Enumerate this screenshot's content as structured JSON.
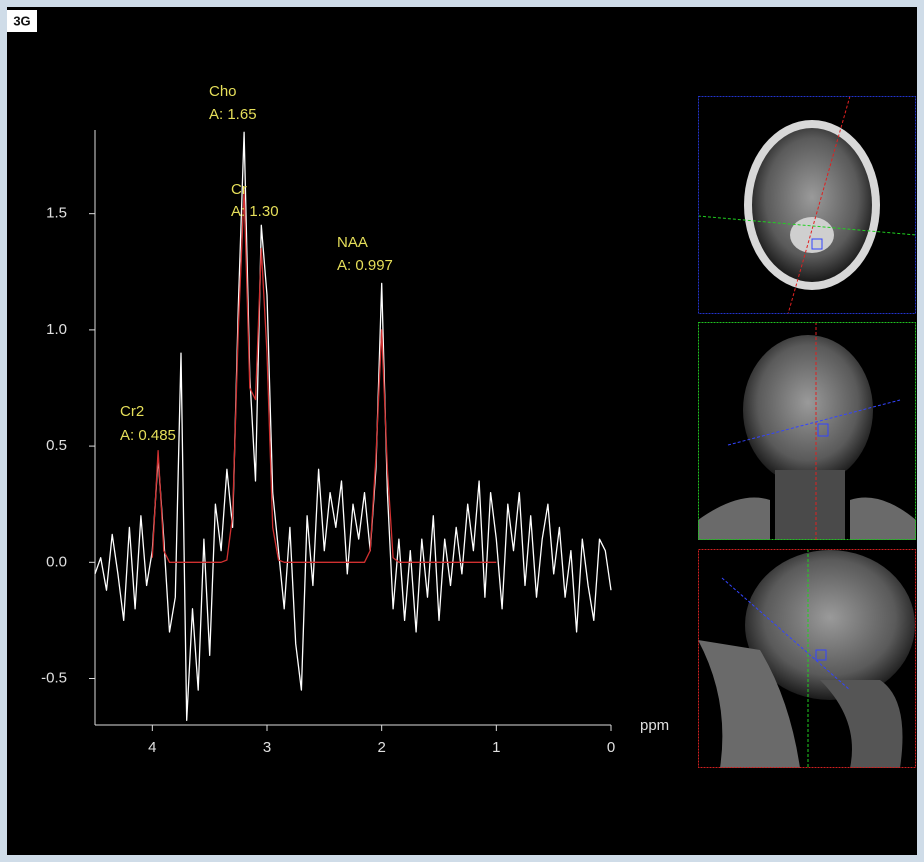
{
  "figure_label": "3G",
  "chart_data": {
    "type": "line",
    "x_label": "ppm",
    "xlim": [
      4.5,
      0
    ],
    "xticks": [
      4,
      3,
      2,
      1,
      0
    ],
    "ylim": [
      -0.7,
      1.86
    ],
    "yticks": [
      -0.5,
      {
        "value": 0,
        "label": "0.0"
      },
      0.5,
      {
        "value": 1,
        "label": "1.0"
      },
      1.5
    ],
    "annotations": [
      {
        "label": "Cho",
        "text": "A: 1.65"
      },
      {
        "label": "Cr",
        "text": "A: 1.30"
      },
      {
        "label": "NAA",
        "text": "A: 0.997"
      },
      {
        "label": "Cr2",
        "text": "A: 0.485"
      }
    ],
    "x": [
      4.5,
      4.45,
      4.4,
      4.35,
      4.3,
      4.25,
      4.2,
      4.15,
      4.1,
      4.05,
      4,
      3.95,
      3.9,
      3.85,
      3.8,
      3.75,
      3.7,
      3.65,
      3.6,
      3.55,
      3.5,
      3.45,
      3.4,
      3.35,
      3.3,
      3.25,
      3.2,
      3.15,
      3.1,
      3.05,
      3,
      2.95,
      2.9,
      2.85,
      2.8,
      2.75,
      2.7,
      2.65,
      2.6,
      2.55,
      2.5,
      2.45,
      2.4,
      2.35,
      2.3,
      2.25,
      2.2,
      2.15,
      2.1,
      2.05,
      2,
      1.95,
      1.9,
      1.85,
      1.8,
      1.75,
      1.7,
      1.65,
      1.6,
      1.55,
      1.5,
      1.45,
      1.4,
      1.35,
      1.3,
      1.25,
      1.2,
      1.15,
      1.1,
      1.05,
      1,
      0.95,
      0.9,
      0.85,
      0.8,
      0.75,
      0.7,
      0.65,
      0.6,
      0.55,
      0.5,
      0.45,
      0.4,
      0.35,
      0.3,
      0.25,
      0.2,
      0.15,
      0.1,
      0.05,
      0
    ],
    "series": [
      {
        "color": "#ffffff",
        "values": [
          -0.05,
          0.02,
          -0.12,
          0.12,
          -0.05,
          -0.25,
          0.15,
          -0.2,
          0.2,
          -0.1,
          0.05,
          0.45,
          0.1,
          -0.3,
          -0.15,
          0.9,
          -0.68,
          -0.2,
          -0.55,
          0.1,
          -0.4,
          0.25,
          0.05,
          0.4,
          0.15,
          1.1,
          1.85,
          0.8,
          0.35,
          1.45,
          1.15,
          0.3,
          0.05,
          -0.2,
          0.15,
          -0.35,
          -0.55,
          0.2,
          -0.1,
          0.4,
          0.05,
          0.3,
          0.15,
          0.35,
          -0.05,
          0.25,
          0.1,
          0.3,
          0.05,
          0.4,
          1.2,
          0.3,
          -0.2,
          0.1,
          -0.25,
          0.05,
          -0.3,
          0.1,
          -0.15,
          0.2,
          -0.25,
          0.1,
          -0.1,
          0.15,
          -0.05,
          0.25,
          0.05,
          0.35,
          -0.15,
          0.3,
          0.1,
          -0.2,
          0.25,
          0.05,
          0.3,
          -0.1,
          0.2,
          -0.15,
          0.1,
          0.25,
          -0.05,
          0.15,
          -0.15,
          0.05,
          -0.3,
          0.1,
          -0.1,
          -0.25,
          0.1,
          0.05,
          -0.12
        ]
      },
      {
        "color": "#d03030",
        "values": [
          null,
          null,
          null,
          null,
          null,
          null,
          null,
          null,
          null,
          null,
          0.02,
          0.48,
          0.05,
          0,
          0,
          0,
          0,
          0,
          0,
          0,
          0,
          0,
          0,
          0.01,
          0.2,
          1.0,
          1.6,
          0.75,
          0.7,
          1.35,
          0.9,
          0.15,
          0.01,
          0,
          0,
          0,
          0,
          0,
          0,
          0,
          0,
          0,
          0,
          0,
          0,
          0,
          0,
          0,
          0.05,
          0.45,
          1.0,
          0.4,
          0.02,
          0,
          0,
          0,
          0,
          0,
          0,
          0,
          0,
          0,
          0,
          0,
          0,
          0,
          0,
          0,
          0,
          0,
          0,
          null,
          null,
          null,
          null,
          null,
          null,
          null,
          null,
          null,
          null,
          null,
          null,
          null,
          null,
          null,
          null,
          null,
          null,
          null,
          null
        ]
      }
    ]
  }
}
